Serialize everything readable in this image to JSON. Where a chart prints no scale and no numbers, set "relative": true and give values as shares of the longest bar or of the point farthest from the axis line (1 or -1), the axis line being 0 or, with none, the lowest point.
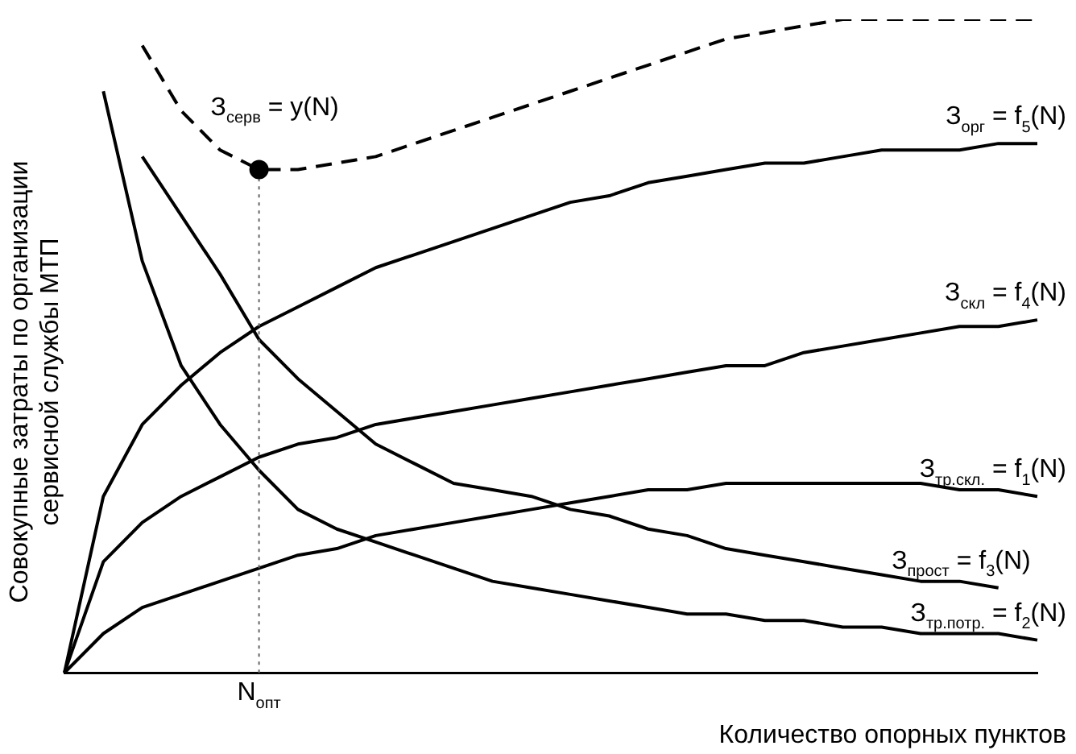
{
  "chart_data": {
    "type": "line",
    "relative": true,
    "xlabel": "Количество опорных пунктов",
    "ylabel": "Совокупные затраты по организации сервисной службы МТП",
    "categories": [
      null,
      null,
      null,
      null,
      null,
      null,
      null,
      null,
      null,
      null,
      null,
      null,
      null,
      null,
      null,
      null,
      null,
      null,
      null,
      null,
      null,
      null,
      null,
      null,
      null,
      null
    ],
    "annotations": [
      "N$_{опт}$"
    ],
    "series": [
      {
        "name": "З$_{серв}$ = y(N)",
        "color": "#000000",
        "line_style": "dashed",
        "values": [
          null,
          null,
          0.96,
          0.86,
          0.8,
          0.77,
          0.77,
          0.78,
          0.79,
          0.81,
          0.83,
          0.85,
          0.87,
          0.89,
          0.91,
          0.93,
          0.95,
          0.97,
          0.98,
          0.99,
          1,
          1,
          1,
          1,
          1,
          1
        ]
      },
      {
        "name": "З$_{орг}$ = f$_{5}$(N)",
        "color": "#000000",
        "values": [
          0,
          0.27,
          0.38,
          0.44,
          0.49,
          0.53,
          0.56,
          0.59,
          0.62,
          0.64,
          0.66,
          0.68,
          0.7,
          0.72,
          0.73,
          0.75,
          0.76,
          0.77,
          0.78,
          0.78,
          0.79,
          0.8,
          0.8,
          0.8,
          0.81,
          0.81
        ]
      },
      {
        "name": "З$_{скл}$ = f$_{4}$(N)",
        "color": "#000000",
        "values": [
          0,
          0.17,
          0.23,
          0.27,
          0.3,
          0.33,
          0.35,
          0.36,
          0.38,
          0.39,
          0.4,
          0.41,
          0.42,
          0.43,
          0.44,
          0.45,
          0.46,
          0.47,
          0.47,
          0.49,
          0.5,
          0.51,
          0.52,
          0.53,
          0.53,
          0.54
        ]
      },
      {
        "name": "З$_{тр.скл.}$ = f$_{1}$(N)",
        "color": "#000000",
        "values": [
          0,
          0.06,
          0.1,
          0.12,
          0.14,
          0.16,
          0.18,
          0.19,
          0.21,
          0.22,
          0.23,
          0.24,
          0.25,
          0.26,
          0.27,
          0.28,
          0.28,
          0.29,
          0.29,
          0.29,
          0.29,
          0.29,
          0.29,
          0.28,
          0.28,
          0.27
        ]
      },
      {
        "name": "З$_{прост}$ = f$_{3}$(N)",
        "color": "#000000",
        "values": [
          null,
          null,
          0.79,
          0.7,
          0.61,
          0.51,
          0.45,
          0.4,
          0.35,
          0.32,
          0.29,
          0.28,
          0.27,
          0.25,
          0.24,
          0.22,
          0.21,
          0.19,
          0.18,
          0.17,
          0.16,
          0.15,
          0.14,
          0.14,
          0.13,
          null
        ]
      },
      {
        "name": "З$_{тр.потр.}$ = f$_{2}$(N)",
        "color": "#000000",
        "values": [
          null,
          0.89,
          0.63,
          0.47,
          0.38,
          0.31,
          0.25,
          0.22,
          0.2,
          0.18,
          0.16,
          0.14,
          0.13,
          0.12,
          0.11,
          0.1,
          0.09,
          0.09,
          0.08,
          0.08,
          0.07,
          0.07,
          0.06,
          0.06,
          0.06,
          0.05
        ]
      }
    ]
  }
}
